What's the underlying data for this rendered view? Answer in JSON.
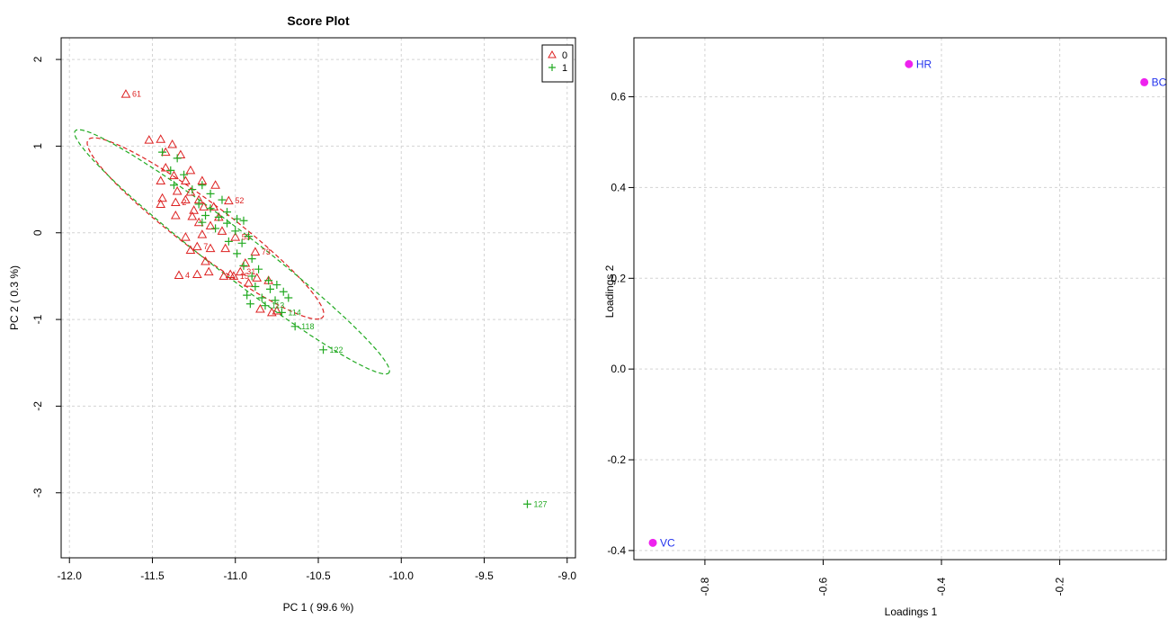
{
  "chart_data": [
    {
      "type": "scatter",
      "title": "Score Plot",
      "xlabel": "PC 1 ( 99.6 %)",
      "ylabel": "PC 2 ( 0.3 %)",
      "xlim": [
        -12.05,
        -8.95
      ],
      "ylim": [
        -3.75,
        2.25
      ],
      "xticks": [
        -12.0,
        -11.5,
        -11.0,
        -10.5,
        -10.0,
        -9.5,
        -9.0
      ],
      "xtick_labels": [
        "-12.0",
        "-11.5",
        "-11.0",
        "-10.5",
        "-10.0",
        "-9.5",
        "-9.0"
      ],
      "yticks": [
        2,
        1,
        0,
        -1,
        -2,
        -3
      ],
      "ytick_labels": [
        "2",
        "1",
        "0",
        "-1",
        "-2",
        "-3"
      ],
      "grid": true,
      "legend_position": "top-right",
      "colors": {
        "0": "#dd2222",
        "1": "#22aa22"
      },
      "series": [
        {
          "name": "0",
          "marker": "triangle",
          "points": [
            {
              "x": -11.66,
              "y": 1.6,
              "label": "61"
            },
            {
              "x": -11.52,
              "y": 1.07,
              "label": ""
            },
            {
              "x": -11.45,
              "y": 1.08,
              "label": ""
            },
            {
              "x": -11.38,
              "y": 1.02,
              "label": ""
            },
            {
              "x": -11.42,
              "y": 0.93,
              "label": ""
            },
            {
              "x": -11.33,
              "y": 0.9,
              "label": ""
            },
            {
              "x": -11.42,
              "y": 0.75,
              "label": ""
            },
            {
              "x": -11.27,
              "y": 0.72,
              "label": ""
            },
            {
              "x": -11.37,
              "y": 0.66,
              "label": ""
            },
            {
              "x": -11.45,
              "y": 0.6,
              "label": ""
            },
            {
              "x": -11.3,
              "y": 0.6,
              "label": ""
            },
            {
              "x": -11.2,
              "y": 0.6,
              "label": ""
            },
            {
              "x": -11.12,
              "y": 0.55,
              "label": ""
            },
            {
              "x": -11.35,
              "y": 0.48,
              "label": ""
            },
            {
              "x": -11.27,
              "y": 0.47,
              "label": ""
            },
            {
              "x": -11.44,
              "y": 0.4,
              "label": ""
            },
            {
              "x": -11.3,
              "y": 0.38,
              "label": ""
            },
            {
              "x": -11.22,
              "y": 0.38,
              "label": ""
            },
            {
              "x": -11.04,
              "y": 0.37,
              "label": "52"
            },
            {
              "x": -11.45,
              "y": 0.33,
              "label": ""
            },
            {
              "x": -11.36,
              "y": 0.35,
              "label": "2"
            },
            {
              "x": -11.19,
              "y": 0.3,
              "label": ""
            },
            {
              "x": -11.13,
              "y": 0.3,
              "label": ""
            },
            {
              "x": -11.25,
              "y": 0.26,
              "label": ""
            },
            {
              "x": -11.36,
              "y": 0.2,
              "label": ""
            },
            {
              "x": -11.26,
              "y": 0.19,
              "label": ""
            },
            {
              "x": -11.1,
              "y": 0.18,
              "label": ""
            },
            {
              "x": -11.22,
              "y": 0.12,
              "label": ""
            },
            {
              "x": -11.15,
              "y": 0.08,
              "label": ""
            },
            {
              "x": -11.08,
              "y": 0.02,
              "label": ""
            },
            {
              "x": -11.3,
              "y": -0.05,
              "label": ""
            },
            {
              "x": -11.2,
              "y": -0.02,
              "label": ""
            },
            {
              "x": -11.0,
              "y": -0.05,
              "label": "55"
            },
            {
              "x": -11.23,
              "y": -0.16,
              "label": "7"
            },
            {
              "x": -11.15,
              "y": -0.18,
              "label": ""
            },
            {
              "x": -11.06,
              "y": -0.18,
              "label": ""
            },
            {
              "x": -11.27,
              "y": -0.2,
              "label": ""
            },
            {
              "x": -10.88,
              "y": -0.22,
              "label": "73"
            },
            {
              "x": -11.18,
              "y": -0.33,
              "label": ""
            },
            {
              "x": -10.94,
              "y": -0.35,
              "label": ""
            },
            {
              "x": -11.16,
              "y": -0.45,
              "label": ""
            },
            {
              "x": -11.03,
              "y": -0.48,
              "label": ""
            },
            {
              "x": -11.34,
              "y": -0.49,
              "label": "4"
            },
            {
              "x": -11.23,
              "y": -0.48,
              "label": ""
            },
            {
              "x": -11.07,
              "y": -0.5,
              "label": ""
            },
            {
              "x": -11.01,
              "y": -0.5,
              "label": "15"
            },
            {
              "x": -10.97,
              "y": -0.45,
              "label": "31"
            },
            {
              "x": -10.87,
              "y": -0.52,
              "label": ""
            },
            {
              "x": -10.8,
              "y": -0.55,
              "label": ""
            },
            {
              "x": -10.92,
              "y": -0.58,
              "label": ""
            },
            {
              "x": -10.85,
              "y": -0.88,
              "label": ""
            },
            {
              "x": -10.78,
              "y": -0.92,
              "label": ""
            },
            {
              "x": -10.75,
              "y": -0.9,
              "label": ""
            }
          ]
        },
        {
          "name": "1",
          "marker": "plus",
          "points": [
            {
              "x": -11.44,
              "y": 0.93,
              "label": ""
            },
            {
              "x": -11.35,
              "y": 0.86,
              "label": ""
            },
            {
              "x": -11.39,
              "y": 0.72,
              "label": ""
            },
            {
              "x": -11.31,
              "y": 0.67,
              "label": ""
            },
            {
              "x": -11.37,
              "y": 0.55,
              "label": ""
            },
            {
              "x": -11.2,
              "y": 0.55,
              "label": ""
            },
            {
              "x": -11.26,
              "y": 0.5,
              "label": ""
            },
            {
              "x": -11.15,
              "y": 0.45,
              "label": ""
            },
            {
              "x": -11.08,
              "y": 0.38,
              "label": ""
            },
            {
              "x": -11.22,
              "y": 0.33,
              "label": ""
            },
            {
              "x": -11.15,
              "y": 0.28,
              "label": ""
            },
            {
              "x": -11.05,
              "y": 0.24,
              "label": ""
            },
            {
              "x": -11.18,
              "y": 0.2,
              "label": ""
            },
            {
              "x": -11.1,
              "y": 0.18,
              "label": ""
            },
            {
              "x": -10.99,
              "y": 0.16,
              "label": ""
            },
            {
              "x": -11.2,
              "y": 0.12,
              "label": ""
            },
            {
              "x": -11.05,
              "y": 0.11,
              "label": ""
            },
            {
              "x": -10.95,
              "y": 0.14,
              "label": ""
            },
            {
              "x": -11.12,
              "y": 0.05,
              "label": ""
            },
            {
              "x": -11.0,
              "y": 0.02,
              "label": ""
            },
            {
              "x": -10.92,
              "y": -0.04,
              "label": ""
            },
            {
              "x": -11.04,
              "y": -0.1,
              "label": ""
            },
            {
              "x": -10.96,
              "y": -0.12,
              "label": ""
            },
            {
              "x": -10.99,
              "y": -0.24,
              "label": ""
            },
            {
              "x": -10.9,
              "y": -0.3,
              "label": ""
            },
            {
              "x": -10.95,
              "y": -0.38,
              "label": ""
            },
            {
              "x": -10.86,
              "y": -0.42,
              "label": ""
            },
            {
              "x": -10.9,
              "y": -0.5,
              "label": ""
            },
            {
              "x": -10.8,
              "y": -0.55,
              "label": ""
            },
            {
              "x": -10.75,
              "y": -0.6,
              "label": ""
            },
            {
              "x": -10.88,
              "y": -0.62,
              "label": ""
            },
            {
              "x": -10.79,
              "y": -0.65,
              "label": ""
            },
            {
              "x": -10.71,
              "y": -0.68,
              "label": ""
            },
            {
              "x": -10.93,
              "y": -0.72,
              "label": ""
            },
            {
              "x": -10.84,
              "y": -0.75,
              "label": ""
            },
            {
              "x": -10.76,
              "y": -0.78,
              "label": ""
            },
            {
              "x": -10.68,
              "y": -0.75,
              "label": ""
            },
            {
              "x": -10.91,
              "y": -0.82,
              "label": ""
            },
            {
              "x": -10.82,
              "y": -0.84,
              "label": "113"
            },
            {
              "x": -10.72,
              "y": -0.92,
              "label": "114"
            },
            {
              "x": -10.64,
              "y": -1.08,
              "label": "118"
            },
            {
              "x": -10.47,
              "y": -1.35,
              "label": "122"
            },
            {
              "x": -9.24,
              "y": -3.13,
              "label": "127"
            }
          ]
        }
      ],
      "ellipses": [
        {
          "series": "0",
          "center": [
            -11.18,
            0.05
          ],
          "semi_major": 1.25,
          "semi_minor": 0.2,
          "slope": -1.5
        },
        {
          "series": "1",
          "center": [
            -11.02,
            -0.22
          ],
          "semi_major": 1.69,
          "semi_minor": 0.18,
          "slope": -1.5
        }
      ]
    },
    {
      "type": "scatter",
      "title": "",
      "xlabel": "Loadings 1",
      "ylabel": "Loadings 2",
      "xlim": [
        -0.92,
        -0.02
      ],
      "ylim": [
        -0.42,
        0.73
      ],
      "xticks": [
        -0.8,
        -0.6,
        -0.4,
        -0.2
      ],
      "xtick_labels": [
        "-0.8",
        "-0.6",
        "-0.4",
        "-0.2"
      ],
      "yticks": [
        0.6,
        0.4,
        0.2,
        0.0,
        -0.2,
        -0.4
      ],
      "ytick_labels": [
        "0.6",
        "0.4",
        "0.2",
        "0.0",
        "-0.2",
        "-0.4"
      ],
      "grid": true,
      "colors": {
        "point": "#ee22ee",
        "label": "#2233ee"
      },
      "points": [
        {
          "x": -0.455,
          "y": 0.672,
          "label": "HR"
        },
        {
          "x": -0.057,
          "y": 0.632,
          "label": "BC"
        },
        {
          "x": -0.888,
          "y": -0.383,
          "label": "VC"
        }
      ]
    }
  ]
}
